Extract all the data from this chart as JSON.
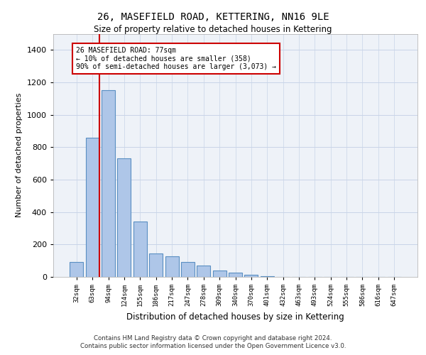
{
  "title_line1": "26, MASEFIELD ROAD, KETTERING, NN16 9LE",
  "title_line2": "Size of property relative to detached houses in Kettering",
  "xlabel": "Distribution of detached houses by size in Kettering",
  "ylabel": "Number of detached properties",
  "categories": [
    "32sqm",
    "63sqm",
    "94sqm",
    "124sqm",
    "155sqm",
    "186sqm",
    "217sqm",
    "247sqm",
    "278sqm",
    "309sqm",
    "340sqm",
    "370sqm",
    "401sqm",
    "432sqm",
    "463sqm",
    "493sqm",
    "524sqm",
    "555sqm",
    "586sqm",
    "616sqm",
    "647sqm"
  ],
  "values": [
    90,
    860,
    1150,
    730,
    340,
    145,
    125,
    90,
    70,
    40,
    25,
    15,
    5,
    0,
    0,
    0,
    0,
    0,
    0,
    0,
    0
  ],
  "bar_color": "#aec6e8",
  "bar_edge_color": "#5a8fc2",
  "bar_edge_width": 0.8,
  "grid_color": "#c8d4e8",
  "background_color": "#eef2f8",
  "annotation_text": "26 MASEFIELD ROAD: 77sqm\n← 10% of detached houses are smaller (358)\n90% of semi-detached houses are larger (3,073) →",
  "annotation_box_color": "#ffffff",
  "annotation_box_edge_color": "#cc0000",
  "vline_color": "#cc0000",
  "ylim": [
    0,
    1500
  ],
  "yticks": [
    0,
    200,
    400,
    600,
    800,
    1000,
    1200,
    1400
  ],
  "footer_line1": "Contains HM Land Registry data © Crown copyright and database right 2024.",
  "footer_line2": "Contains public sector information licensed under the Open Government Licence v3.0."
}
